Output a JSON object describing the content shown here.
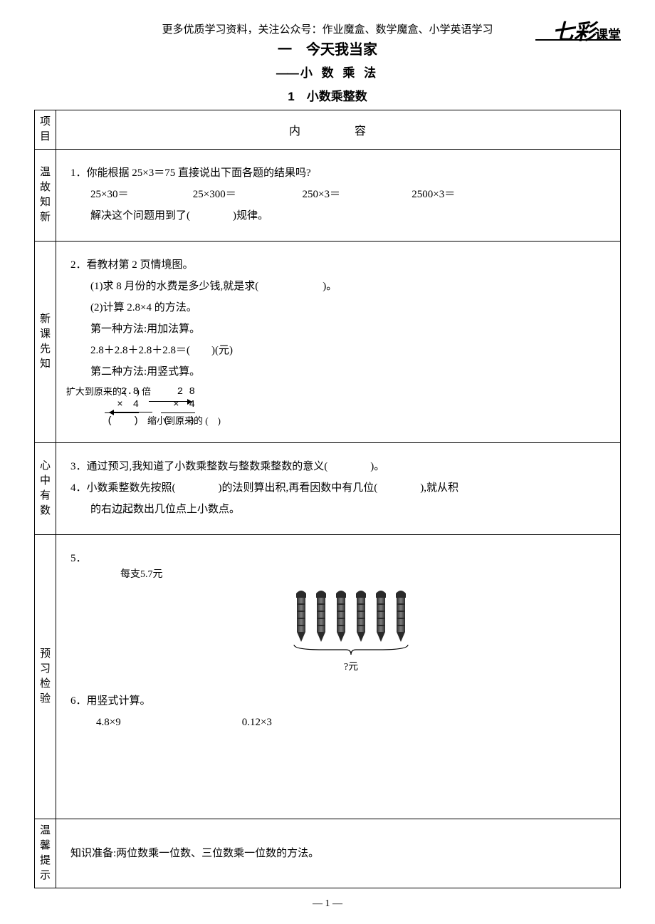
{
  "header": "更多优质学习资料，关注公众号：作业魔盒、数学魔盒、小学英语学习",
  "logo_main": "七彩",
  "logo_sub": "课堂",
  "unit_title": "一　今天我当家",
  "unit_sub": "小 数 乘 法",
  "lesson_title": "1　小数乘整数",
  "table": {
    "col_project": "项目",
    "col_content": "内　容",
    "rows": {
      "wengu": {
        "label": "温故知新",
        "q1_lead": "1．你能根据 25×3＝75 直接说出下面各题的结果吗?",
        "eq1": "25×30＝",
        "eq2": "25×300＝",
        "eq3": "250×3＝",
        "eq4": "2500×3＝",
        "q1_tail": "解决这个问题用到了(　　　　)规律。"
      },
      "xinke": {
        "label": "新课先知",
        "l1": "2．看教材第 2 页情境图。",
        "l2": "(1)求 8 月份的水费是多少钱,就是求(　　　　　　)。",
        "l3": "(2)计算 2.8×4 的方法。",
        "l4": "第一种方法:用加法算。",
        "l5": "2.8＋2.8＋2.8＋2.8＝(　　)(元)",
        "l6": "第二种方法:用竖式算。",
        "mul_left_a": "2.8",
        "mul_left_b": "×　4",
        "mul_left_r": "(　　)",
        "arrow_up": "扩大到原来的 (　) 倍",
        "arrow_dn": "缩小到原来的 (　)",
        "mul_right_a": "2 8",
        "mul_right_b": "×　4",
        "mul_right_r": "(　　)"
      },
      "xinzhong": {
        "label": "心中有数",
        "l1": "3．通过预习,我知道了小数乘整数与整数乘整数的意义(　　　　)。",
        "l2a": "4．小数乘整数先按照(　　　　)的法则算出积,再看因数中有几位(　　　　),就从积",
        "l2b": "的右边起数出几位点上小数点。"
      },
      "yuxi": {
        "label": "预习检验",
        "q5": "5．",
        "price": "每支5.7元",
        "pen_count": 6,
        "qmark": "?元",
        "q6": "6．用竖式计算。",
        "c1": "4.8×9",
        "c2": "0.12×3"
      },
      "wenxin": {
        "label": "温馨提示",
        "text": "知识准备:两位数乘一位数、三位数乘一位数的方法。"
      }
    }
  },
  "page_num": "— 1 —",
  "colors": {
    "text": "#000000",
    "bg": "#ffffff",
    "pen_dark": "#2a2a2a",
    "pen_light": "#777777"
  }
}
